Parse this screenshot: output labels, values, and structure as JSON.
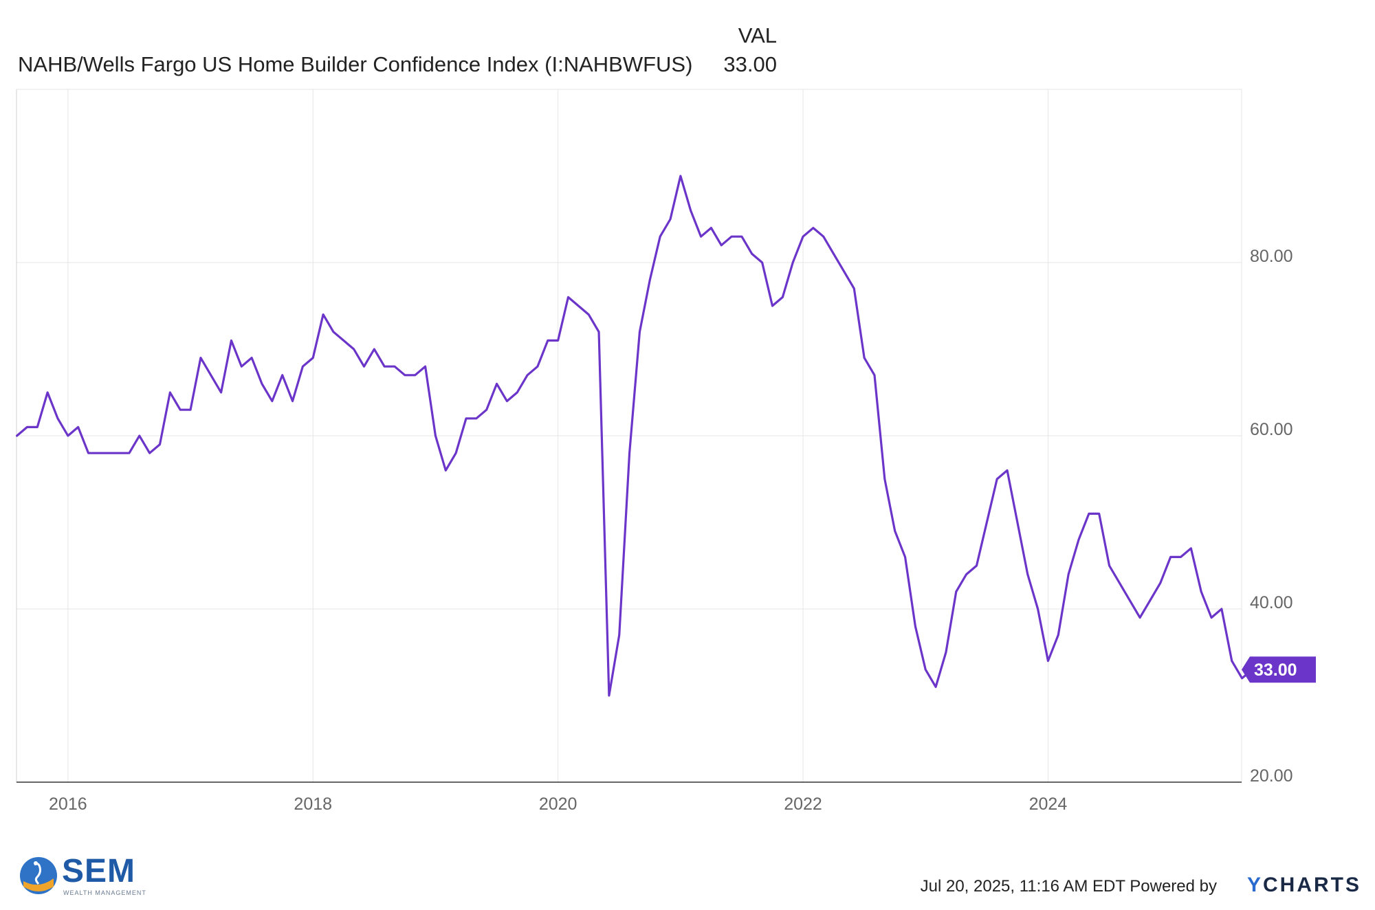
{
  "legend": {
    "column_header": "VAL",
    "series_name": "NAHB/Wells Fargo US Home Builder Confidence Index (I:NAHBWFUS)",
    "series_value": "33.00"
  },
  "footer": {
    "timestamp": "Jul 20, 2025, 11:16 AM EDT Powered by",
    "brand_y": "Y",
    "brand_rest": "CHARTS",
    "logo_text": "SEM",
    "logo_subtext": "WEALTH MANAGEMENT"
  },
  "colors": {
    "line": "#6b35c9",
    "badge": "#6b35c9",
    "grid": "#e6e6e6",
    "axis_text": "#666666"
  },
  "chart_data": {
    "type": "line",
    "title": "NAHB/Wells Fargo US Home Builder Confidence Index (I:NAHBWFUS)",
    "xlabel": "",
    "ylabel": "",
    "x_range": [
      2015.58,
      2025.58
    ],
    "ylim": [
      20,
      100
    ],
    "y_ticks": [
      20,
      40,
      60,
      80
    ],
    "y_tick_labels": [
      "20.00",
      "40.00",
      "60.00",
      "80.00"
    ],
    "x_ticks": [
      2016,
      2018,
      2020,
      2022,
      2024
    ],
    "x_tick_labels": [
      "2016",
      "2018",
      "2020",
      "2022",
      "2024"
    ],
    "last_value_label": "33.00",
    "grid": true,
    "series": [
      {
        "name": "NAHB/Wells Fargo US Home Builder Confidence Index",
        "start": "2015-08",
        "frequency": "monthly",
        "values": [
          60,
          61,
          61,
          65,
          62,
          60,
          61,
          58,
          58,
          58,
          58,
          58,
          60,
          58,
          59,
          65,
          63,
          63,
          69,
          67,
          65,
          71,
          68,
          69,
          66,
          64,
          67,
          64,
          68,
          69,
          74,
          72,
          71,
          70,
          68,
          70,
          68,
          68,
          67,
          67,
          68,
          60,
          56,
          58,
          62,
          62,
          63,
          66,
          64,
          65,
          67,
          68,
          71,
          71,
          76,
          75,
          74,
          72,
          30,
          37,
          58,
          72,
          78,
          83,
          85,
          90,
          86,
          83,
          84,
          82,
          83,
          83,
          81,
          80,
          75,
          76,
          80,
          83,
          84,
          83,
          81,
          79,
          77,
          69,
          67,
          55,
          49,
          46,
          38,
          33,
          31,
          35,
          42,
          44,
          45,
          50,
          55,
          56,
          50,
          44,
          40,
          34,
          37,
          44,
          48,
          51,
          51,
          45,
          43,
          41,
          39,
          41,
          43,
          46,
          46,
          47,
          42,
          39,
          40,
          34,
          32,
          33
        ]
      }
    ]
  }
}
